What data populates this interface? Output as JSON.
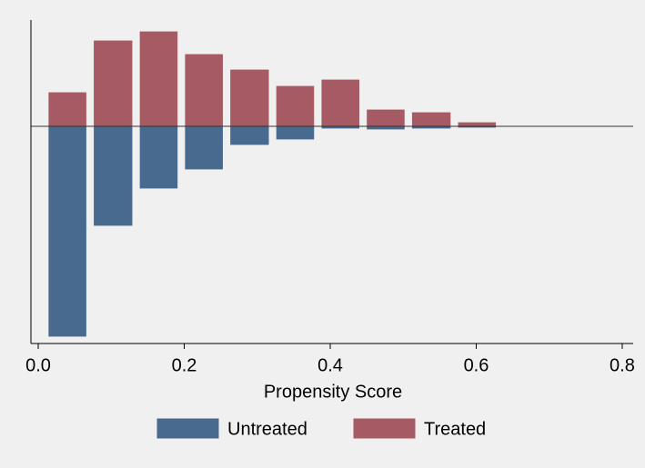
{
  "chart_data": {
    "type": "histogram",
    "x_label": "Propensity Score",
    "bins": [
      0.009,
      0.071,
      0.134,
      0.196,
      0.258,
      0.321,
      0.383,
      0.445,
      0.507,
      0.57,
      0.632
    ],
    "series": [
      {
        "name": "Untreated",
        "color": "#486a8e",
        "values": [
          -2.31,
          -1.09,
          -0.68,
          -0.47,
          -0.2,
          -0.14,
          -0.02,
          -0.03,
          -0.02,
          -0.01
        ]
      },
      {
        "name": "Treated",
        "color": "#a65a63",
        "values": [
          0.37,
          0.94,
          1.04,
          0.79,
          0.62,
          0.44,
          0.51,
          0.18,
          0.15,
          0.04
        ]
      }
    ],
    "xlim": [
      -0.01,
      0.815
    ],
    "xticks": [
      {
        "value": 0,
        "label": "0.0"
      },
      0.2,
      0.4,
      0.6,
      0.8
    ],
    "ylim": [
      -2.39,
      1.17
    ]
  }
}
